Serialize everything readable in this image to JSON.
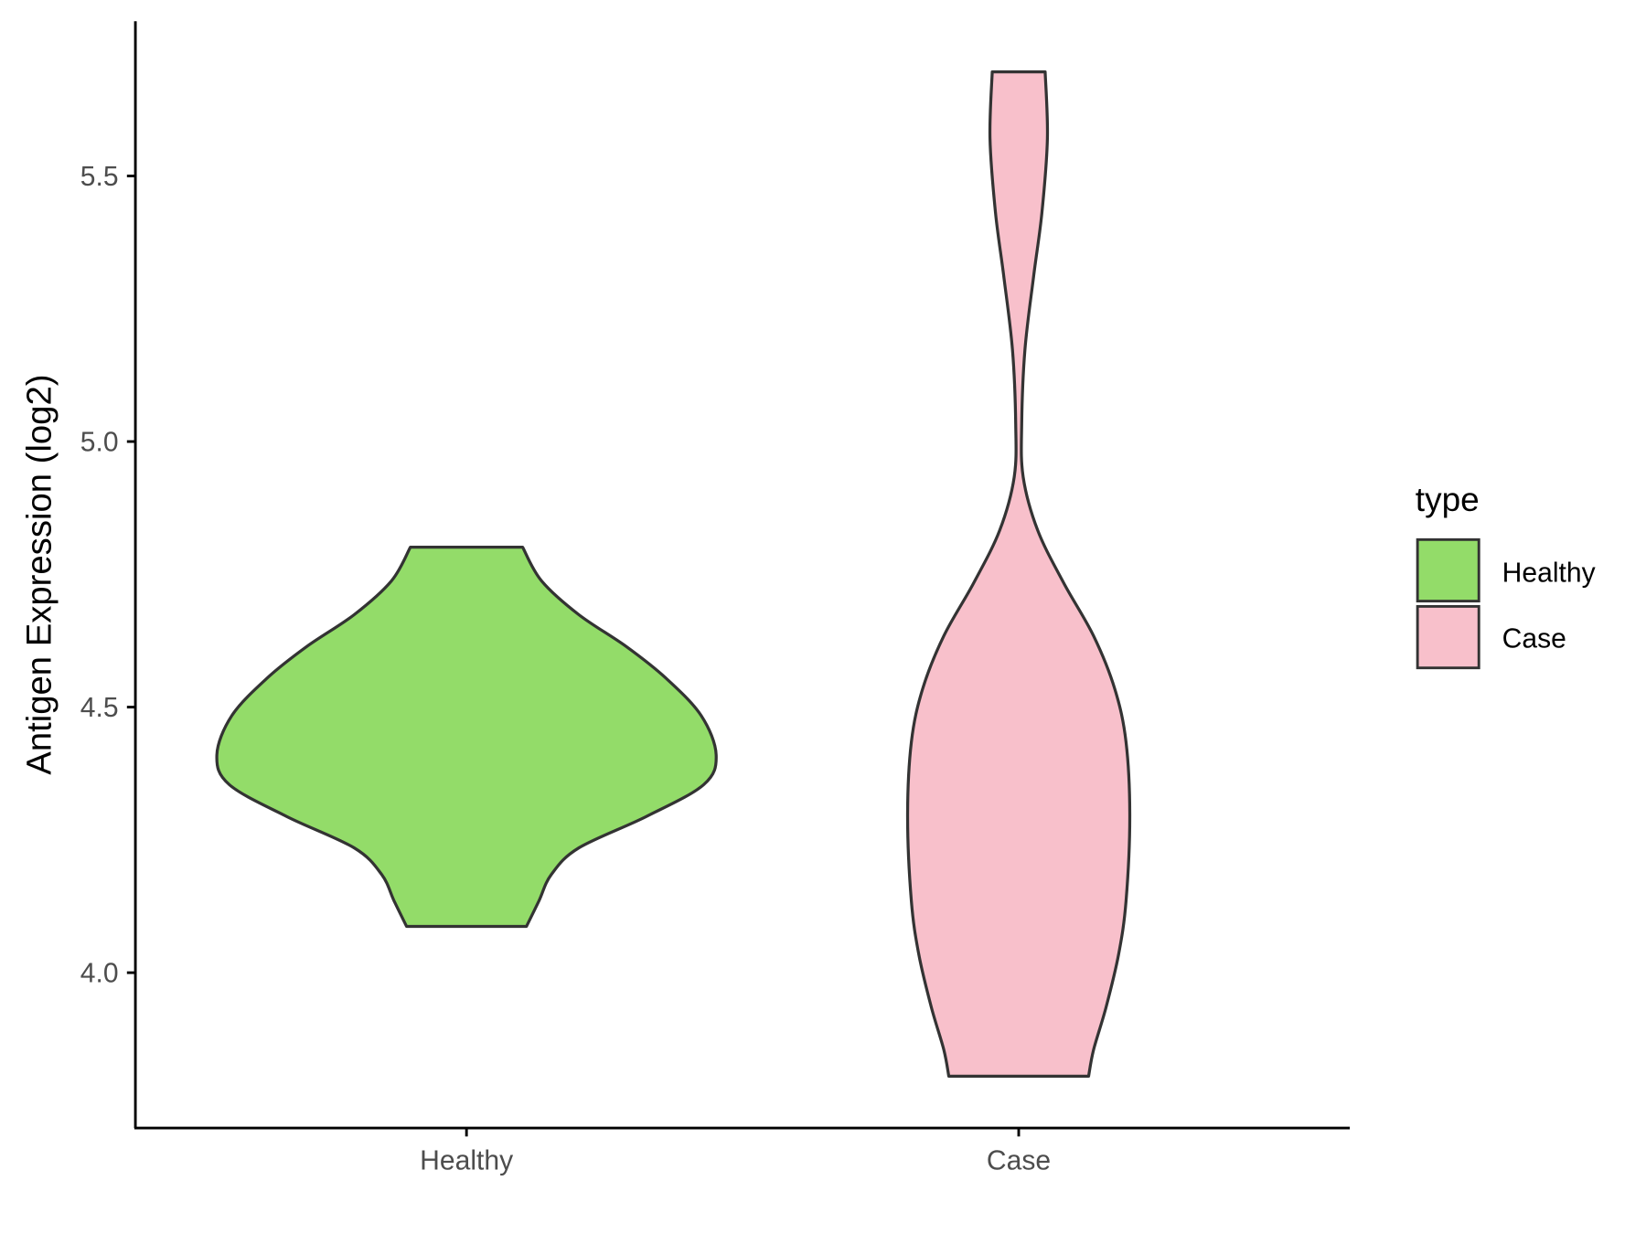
{
  "chart_data": {
    "type": "violin",
    "title": "",
    "xlabel": "",
    "ylabel": "Antigen Expression (log2)",
    "ylim": [
      3.71,
      5.79
    ],
    "yticks": [
      "4.0",
      "4.5",
      "5.0",
      "5.5"
    ],
    "ytick_values": [
      4.0,
      4.5,
      5.0,
      5.5
    ],
    "categories": [
      "Healthy",
      "Case"
    ],
    "grid": false,
    "legend": {
      "title": "type",
      "position": "right",
      "entries": [
        "Healthy",
        "Case"
      ]
    },
    "colors": {
      "Healthy": "#93DC69",
      "Case": "#F8C0CB",
      "outline": "#333333"
    },
    "series": [
      {
        "name": "Healthy",
        "min": 4.087,
        "max": 4.801,
        "density_profile": [
          [
            4.087,
            0.24
          ],
          [
            4.135,
            0.29
          ],
          [
            4.185,
            0.34
          ],
          [
            4.235,
            0.45
          ],
          [
            4.294,
            0.72
          ],
          [
            4.354,
            0.95
          ],
          [
            4.41,
            1.0
          ],
          [
            4.484,
            0.94
          ],
          [
            4.554,
            0.8
          ],
          [
            4.614,
            0.64
          ],
          [
            4.674,
            0.45
          ],
          [
            4.738,
            0.3
          ],
          [
            4.801,
            0.225
          ]
        ]
      },
      {
        "name": "Case",
        "min": 3.805,
        "max": 5.696,
        "density_profile": [
          [
            3.805,
            0.28
          ],
          [
            3.855,
            0.3
          ],
          [
            3.935,
            0.35
          ],
          [
            4.034,
            0.4
          ],
          [
            4.135,
            0.43
          ],
          [
            4.294,
            0.445
          ],
          [
            4.434,
            0.43
          ],
          [
            4.534,
            0.385
          ],
          [
            4.634,
            0.3
          ],
          [
            4.734,
            0.18
          ],
          [
            4.833,
            0.076
          ],
          [
            4.933,
            0.018
          ],
          [
            5.033,
            0.012
          ],
          [
            5.173,
            0.025
          ],
          [
            5.312,
            0.06
          ],
          [
            5.431,
            0.093
          ],
          [
            5.571,
            0.115
          ],
          [
            5.696,
            0.106
          ]
        ]
      }
    ]
  }
}
